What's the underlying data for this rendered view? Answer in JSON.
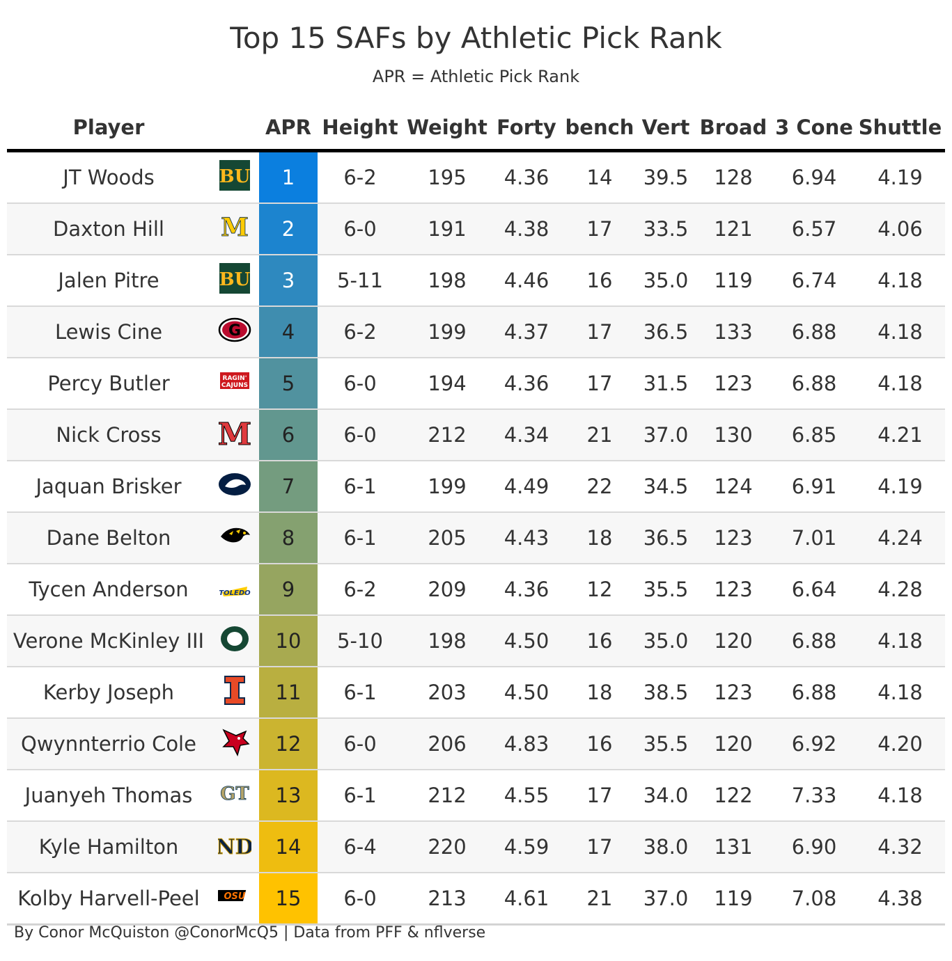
{
  "title": "Top 15 SAFs by Athletic Pick Rank",
  "subtitle": "APR = Athletic Pick Rank",
  "footer": "By Conor McQuiston @ConorMcQ5 | Data from PFF & nflverse",
  "chart_data": {
    "type": "table",
    "columns": [
      "Player",
      "",
      "APR",
      "Height",
      "Weight",
      "Forty",
      "bench",
      "Vert",
      "Broad",
      "3 Cone",
      "Shuttle"
    ],
    "apr_color_scale": [
      "#0b7fdf",
      "#ffc200"
    ],
    "rows": [
      {
        "player": "JT Woods",
        "school_logo": "baylor-logo",
        "apr": "1",
        "height": "6-2",
        "weight": "195",
        "forty": "4.36",
        "bench": "14",
        "vert": "39.5",
        "broad": "128",
        "cone": "6.94",
        "shuttle": "4.19"
      },
      {
        "player": "Daxton Hill",
        "school_logo": "michigan-logo",
        "apr": "2",
        "height": "6-0",
        "weight": "191",
        "forty": "4.38",
        "bench": "17",
        "vert": "33.5",
        "broad": "121",
        "cone": "6.57",
        "shuttle": "4.06"
      },
      {
        "player": "Jalen Pitre",
        "school_logo": "baylor-logo",
        "apr": "3",
        "height": "5-11",
        "weight": "198",
        "forty": "4.46",
        "bench": "16",
        "vert": "35.0",
        "broad": "119",
        "cone": "6.74",
        "shuttle": "4.18"
      },
      {
        "player": "Lewis Cine",
        "school_logo": "georgia-logo",
        "apr": "4",
        "height": "6-2",
        "weight": "199",
        "forty": "4.37",
        "bench": "17",
        "vert": "36.5",
        "broad": "133",
        "cone": "6.88",
        "shuttle": "4.18"
      },
      {
        "player": "Percy Butler",
        "school_logo": "louisiana-logo",
        "apr": "5",
        "height": "6-0",
        "weight": "194",
        "forty": "4.36",
        "bench": "17",
        "vert": "31.5",
        "broad": "123",
        "cone": "6.88",
        "shuttle": "4.18"
      },
      {
        "player": "Nick Cross",
        "school_logo": "maryland-logo",
        "apr": "6",
        "height": "6-0",
        "weight": "212",
        "forty": "4.34",
        "bench": "21",
        "vert": "37.0",
        "broad": "130",
        "cone": "6.85",
        "shuttle": "4.21"
      },
      {
        "player": "Jaquan Brisker",
        "school_logo": "penn-state-logo",
        "apr": "7",
        "height": "6-1",
        "weight": "199",
        "forty": "4.49",
        "bench": "22",
        "vert": "34.5",
        "broad": "124",
        "cone": "6.91",
        "shuttle": "4.19"
      },
      {
        "player": "Dane Belton",
        "school_logo": "iowa-logo",
        "apr": "8",
        "height": "6-1",
        "weight": "205",
        "forty": "4.43",
        "bench": "18",
        "vert": "36.5",
        "broad": "123",
        "cone": "7.01",
        "shuttle": "4.24"
      },
      {
        "player": "Tycen Anderson",
        "school_logo": "toledo-logo",
        "apr": "9",
        "height": "6-2",
        "weight": "209",
        "forty": "4.36",
        "bench": "12",
        "vert": "35.5",
        "broad": "123",
        "cone": "6.64",
        "shuttle": "4.28"
      },
      {
        "player": "Verone McKinley III",
        "school_logo": "oregon-logo",
        "apr": "10",
        "height": "5-10",
        "weight": "198",
        "forty": "4.50",
        "bench": "16",
        "vert": "35.0",
        "broad": "120",
        "cone": "6.88",
        "shuttle": "4.18"
      },
      {
        "player": "Kerby Joseph",
        "school_logo": "illinois-logo",
        "apr": "11",
        "height": "6-1",
        "weight": "203",
        "forty": "4.50",
        "bench": "18",
        "vert": "38.5",
        "broad": "123",
        "cone": "6.88",
        "shuttle": "4.18"
      },
      {
        "player": "Qwynnterrio Cole",
        "school_logo": "louisville-logo",
        "apr": "12",
        "height": "6-0",
        "weight": "206",
        "forty": "4.83",
        "bench": "16",
        "vert": "35.5",
        "broad": "120",
        "cone": "6.92",
        "shuttle": "4.20"
      },
      {
        "player": "Juanyeh Thomas",
        "school_logo": "georgia-tech-logo",
        "apr": "13",
        "height": "6-1",
        "weight": "212",
        "forty": "4.55",
        "bench": "17",
        "vert": "34.0",
        "broad": "122",
        "cone": "7.33",
        "shuttle": "4.18"
      },
      {
        "player": "Kyle Hamilton",
        "school_logo": "notre-dame-logo",
        "apr": "14",
        "height": "6-4",
        "weight": "220",
        "forty": "4.59",
        "bench": "17",
        "vert": "38.0",
        "broad": "131",
        "cone": "6.90",
        "shuttle": "4.32"
      },
      {
        "player": "Kolby Harvell-Peel",
        "school_logo": "oklahoma-state-logo",
        "apr": "15",
        "height": "6-0",
        "weight": "213",
        "forty": "4.61",
        "bench": "21",
        "vert": "37.0",
        "broad": "119",
        "cone": "7.08",
        "shuttle": "4.38"
      }
    ]
  }
}
